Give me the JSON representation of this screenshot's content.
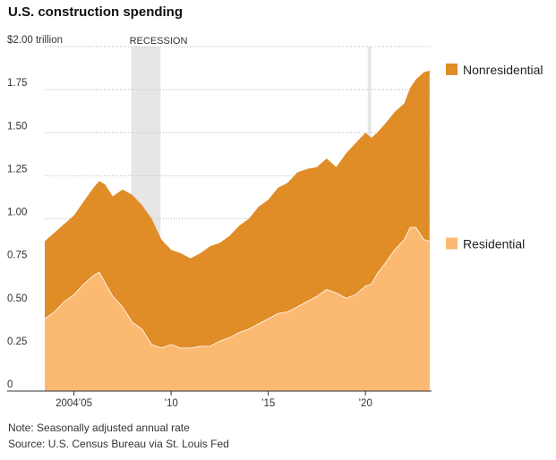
{
  "chart_data": {
    "type": "area",
    "title": "U.S. construction spending",
    "note": "Note: Seasonally adjusted annual rate",
    "source": "Source: U.S. Census Bureau via St. Louis Fed",
    "ylim": [
      0,
      2.0
    ],
    "xlim": [
      2003.5,
      2023.4
    ],
    "y_ticks": [
      {
        "value": 2.0,
        "label": "$2.00 trillion"
      },
      {
        "value": 1.75,
        "label": "1.75"
      },
      {
        "value": 1.5,
        "label": "1.50"
      },
      {
        "value": 1.25,
        "label": "1.25"
      },
      {
        "value": 1.0,
        "label": "1.00"
      },
      {
        "value": 0.75,
        "label": "0.75"
      },
      {
        "value": 0.5,
        "label": "0.50"
      },
      {
        "value": 0.25,
        "label": "0.25"
      },
      {
        "value": 0,
        "label": "0"
      }
    ],
    "x_ticks": [
      {
        "value": 2005,
        "label": "2004’05"
      },
      {
        "value": 2010,
        "label": "’10"
      },
      {
        "value": 2015,
        "label": "’15"
      },
      {
        "value": 2020,
        "label": "’20"
      }
    ],
    "recessions": [
      {
        "start": 2007.95,
        "end": 2009.45,
        "label": "RECESSION"
      },
      {
        "start": 2020.12,
        "end": 2020.3,
        "label": ""
      }
    ],
    "x": [
      2003.5,
      2004.0,
      2004.5,
      2005.0,
      2005.5,
      2006.0,
      2006.3,
      2006.6,
      2007.0,
      2007.5,
      2008.0,
      2008.5,
      2009.0,
      2009.5,
      2010.0,
      2010.5,
      2011.0,
      2011.5,
      2012.0,
      2012.5,
      2013.0,
      2013.5,
      2014.0,
      2014.5,
      2015.0,
      2015.5,
      2016.0,
      2016.5,
      2017.0,
      2017.5,
      2018.0,
      2018.5,
      2019.0,
      2019.5,
      2020.0,
      2020.3,
      2020.6,
      2021.0,
      2021.5,
      2022.0,
      2022.3,
      2022.6,
      2023.0,
      2023.3
    ],
    "series": [
      {
        "name": "Nonresidential",
        "values": [
          0.87,
          0.92,
          0.97,
          1.02,
          1.1,
          1.18,
          1.22,
          1.2,
          1.13,
          1.17,
          1.14,
          1.08,
          1.0,
          0.88,
          0.82,
          0.8,
          0.77,
          0.8,
          0.84,
          0.86,
          0.9,
          0.96,
          1.0,
          1.07,
          1.11,
          1.18,
          1.21,
          1.27,
          1.29,
          1.3,
          1.35,
          1.3,
          1.38,
          1.44,
          1.5,
          1.47,
          1.5,
          1.55,
          1.62,
          1.67,
          1.76,
          1.81,
          1.85,
          1.86
        ],
        "color": "#e08c27"
      },
      {
        "name": "Residential",
        "values": [
          0.42,
          0.46,
          0.52,
          0.56,
          0.62,
          0.67,
          0.69,
          0.63,
          0.55,
          0.49,
          0.4,
          0.36,
          0.27,
          0.25,
          0.27,
          0.25,
          0.25,
          0.26,
          0.26,
          0.29,
          0.31,
          0.34,
          0.36,
          0.39,
          0.42,
          0.45,
          0.46,
          0.49,
          0.52,
          0.55,
          0.59,
          0.57,
          0.54,
          0.56,
          0.61,
          0.62,
          0.68,
          0.74,
          0.82,
          0.88,
          0.95,
          0.95,
          0.88,
          0.87
        ],
        "color": "#fbb972"
      }
    ],
    "legend": [
      {
        "label": "Nonresidential",
        "color": "#e08c27"
      },
      {
        "label": "Residential",
        "color": "#fbb972"
      }
    ],
    "recession_color": "#e6e6e6",
    "grid": true
  }
}
